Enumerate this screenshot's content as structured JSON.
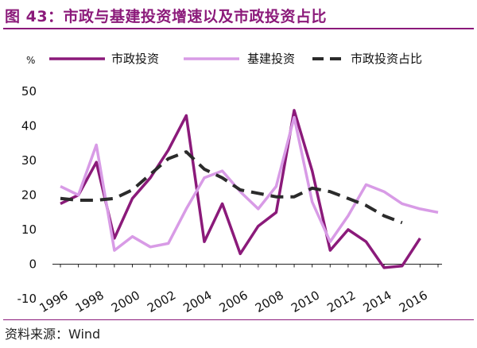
{
  "figure": {
    "title": "图 43：市政与基建投资增速以及市政投资占比",
    "source": "资料来源：Wind"
  },
  "chart_data": {
    "type": "line",
    "title": "图 43：市政与基建投资增速以及市政投资占比",
    "ylabel": "%",
    "xlabel": "",
    "ylim": [
      -10,
      50
    ],
    "yticks": [
      -10,
      0,
      10,
      20,
      30,
      40,
      50
    ],
    "x": [
      1996,
      1997,
      1998,
      1999,
      2000,
      2001,
      2002,
      2003,
      2004,
      2005,
      2006,
      2007,
      2008,
      2009,
      2010,
      2011,
      2012,
      2013,
      2014,
      2015,
      2016,
      2017
    ],
    "xtick_labels": [
      "1996",
      "1998",
      "2000",
      "2002",
      "2004",
      "2006",
      "2008",
      "2010",
      "2012",
      "2014",
      "2016"
    ],
    "legend_position": "top",
    "grid": false,
    "series": [
      {
        "name": "市政投资",
        "color": "#8B1A7A",
        "style": "solid",
        "values": [
          17.5,
          20,
          29.5,
          7.5,
          19,
          25,
          33,
          43,
          6.5,
          17.5,
          3,
          11,
          15,
          44.5,
          27,
          4,
          10,
          6.5,
          -1,
          -0.5,
          7.5,
          null
        ]
      },
      {
        "name": "基建投资",
        "color": "#D89BE6",
        "style": "solid",
        "values": [
          22.5,
          20,
          34.5,
          4,
          8,
          5,
          6,
          16,
          25,
          27,
          21,
          16,
          22.5,
          42.5,
          18,
          6.5,
          14,
          23,
          21,
          17.5,
          16,
          15
        ]
      },
      {
        "name": "市政投资占比",
        "color": "#2B2B2B",
        "style": "dashed",
        "values": [
          19,
          18.5,
          18.5,
          19,
          21.5,
          26,
          30.5,
          32.5,
          27.5,
          25,
          21.5,
          20.5,
          19.5,
          19.5,
          22,
          21,
          19,
          17,
          14,
          12,
          null,
          null
        ]
      }
    ]
  }
}
